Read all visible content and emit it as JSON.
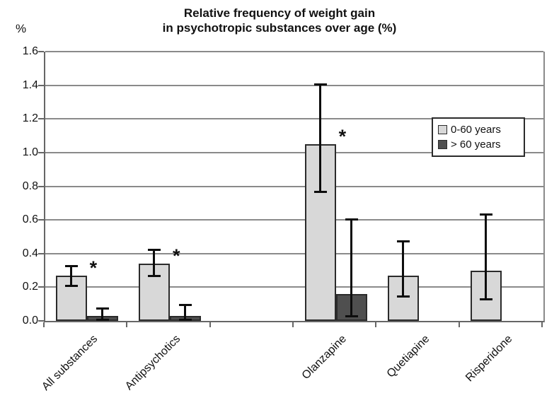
{
  "figure": {
    "title_line1": "Relative frequency of weight gain",
    "title_line2": "in psychotropic substances over age (%)",
    "y_axis_unit_label": "%"
  },
  "chart_data": {
    "type": "bar",
    "title": "Relative frequency of weight gain in psychotropic substances over age (%)",
    "xlabel": "",
    "ylabel": "%",
    "ylim": [
      0,
      1.6
    ],
    "ytick_labels": [
      "0.0",
      "0.2",
      "0.4",
      "0.6",
      "0.8",
      "1.0",
      "1.2",
      "1.4",
      "1.6"
    ],
    "gridlines": true,
    "legend_position": "inside upper right",
    "slot_count": 6,
    "note": "slot 2 is an empty spacer category between Antipsychotics and Olanzapine; asterisks mark significant bars; whiskers are error bars (low/high)",
    "categories": [
      {
        "label": "All substances",
        "slot": 0
      },
      {
        "label": "Antipsychotics",
        "slot": 1
      },
      {
        "label": "Olanzapine",
        "slot": 3
      },
      {
        "label": "Quetiapine",
        "slot": 4
      },
      {
        "label": "Risperidone",
        "slot": 5
      }
    ],
    "series": [
      {
        "name": "0-60 years",
        "color": "#d8d8d8",
        "values": [
          0.27,
          0.34,
          1.05,
          0.27,
          0.3
        ],
        "error_low": [
          0.2,
          0.26,
          0.76,
          0.14,
          0.12
        ],
        "error_high": [
          0.33,
          0.43,
          1.41,
          0.48,
          0.64
        ],
        "significance_asterisk": [
          true,
          true,
          true,
          false,
          false
        ]
      },
      {
        "name": "> 60 years",
        "color": "#4f4f4f",
        "values": [
          0.03,
          0.03,
          0.16,
          null,
          null
        ],
        "error_low": [
          0.0,
          0.0,
          0.02,
          null,
          null
        ],
        "error_high": [
          0.08,
          0.1,
          0.61,
          null,
          null
        ],
        "significance_asterisk": [
          false,
          false,
          false,
          false,
          false
        ]
      }
    ]
  }
}
